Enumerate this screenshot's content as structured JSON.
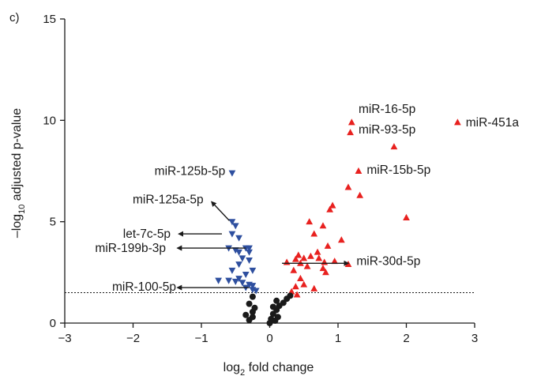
{
  "chart_data": {
    "type": "scatter",
    "panel_label": "c)",
    "title": "",
    "xlabel": {
      "main": "log",
      "sub": "2",
      "rest": " fold change"
    },
    "ylabel": {
      "pre": "–log",
      "sub": "10",
      "rest": " adjusted p-value"
    },
    "xlim": [
      -3,
      3
    ],
    "ylim": [
      0,
      15
    ],
    "xticks": [
      -3,
      -2,
      -1,
      0,
      1,
      2,
      3
    ],
    "yticks": [
      0,
      5,
      10,
      15
    ],
    "x_tick_labels": [
      "−3",
      "−2",
      "−1",
      "0",
      "1",
      "2",
      "3"
    ],
    "y_tick_labels": [
      "0",
      "5",
      "10",
      "15"
    ],
    "grid": false,
    "threshold_line": {
      "y": 1.5,
      "style": "dotted"
    },
    "colors": {
      "down": "#2e4f9f",
      "up": "#e8211f",
      "ns": "#1a1a1a",
      "axis": "#1a1a1a"
    },
    "series": [
      {
        "group": "down",
        "marker": "triangle-down",
        "points": [
          [
            -0.55,
            7.4
          ],
          [
            -0.55,
            5.0
          ],
          [
            -0.5,
            4.8
          ],
          [
            -0.55,
            4.4
          ],
          [
            -0.45,
            4.2
          ],
          [
            -0.6,
            3.7
          ],
          [
            -0.35,
            3.7
          ],
          [
            -0.3,
            3.7
          ],
          [
            -0.5,
            3.6
          ],
          [
            -0.45,
            3.5
          ],
          [
            -0.3,
            3.5
          ],
          [
            -0.4,
            3.2
          ],
          [
            -0.3,
            3.1
          ],
          [
            -0.45,
            2.9
          ],
          [
            -0.25,
            2.6
          ],
          [
            -0.55,
            2.6
          ],
          [
            -0.35,
            2.4
          ],
          [
            -0.45,
            2.2
          ],
          [
            -0.75,
            2.1
          ],
          [
            -0.6,
            2.1
          ],
          [
            -0.5,
            2.05
          ],
          [
            -0.4,
            2.0
          ],
          [
            -0.3,
            1.9
          ],
          [
            -0.25,
            1.85
          ],
          [
            -0.35,
            1.75
          ],
          [
            -0.25,
            1.65
          ],
          [
            -0.2,
            1.6
          ]
        ]
      },
      {
        "group": "up",
        "marker": "triangle-up",
        "points": [
          [
            2.75,
            9.9
          ],
          [
            1.2,
            9.9
          ],
          [
            1.18,
            9.4
          ],
          [
            1.82,
            8.7
          ],
          [
            1.3,
            7.5
          ],
          [
            1.15,
            6.7
          ],
          [
            1.32,
            6.3
          ],
          [
            2.0,
            5.2
          ],
          [
            0.92,
            5.8
          ],
          [
            0.88,
            5.6
          ],
          [
            0.58,
            5.0
          ],
          [
            0.78,
            4.8
          ],
          [
            0.65,
            4.4
          ],
          [
            1.05,
            4.1
          ],
          [
            0.85,
            3.8
          ],
          [
            0.7,
            3.5
          ],
          [
            0.25,
            3.0
          ],
          [
            0.38,
            3.15
          ],
          [
            0.42,
            3.35
          ],
          [
            0.5,
            3.2
          ],
          [
            0.6,
            3.3
          ],
          [
            0.72,
            3.2
          ],
          [
            0.8,
            3.0
          ],
          [
            0.95,
            3.05
          ],
          [
            1.15,
            2.9
          ],
          [
            0.55,
            2.8
          ],
          [
            0.45,
            2.95
          ],
          [
            0.35,
            2.6
          ],
          [
            0.78,
            2.7
          ],
          [
            0.82,
            2.5
          ],
          [
            0.45,
            2.2
          ],
          [
            0.5,
            1.9
          ],
          [
            0.38,
            1.8
          ],
          [
            0.65,
            1.7
          ],
          [
            0.32,
            1.55
          ],
          [
            0.4,
            1.4
          ]
        ]
      },
      {
        "group": "ns",
        "marker": "circle",
        "points": [
          [
            -0.25,
            1.3
          ],
          [
            -0.3,
            0.95
          ],
          [
            -0.22,
            0.75
          ],
          [
            -0.25,
            0.55
          ],
          [
            -0.35,
            0.4
          ],
          [
            -0.3,
            0.15
          ],
          [
            -0.25,
            0.3
          ],
          [
            0.0,
            0.0
          ],
          [
            0.02,
            0.2
          ],
          [
            0.05,
            0.45
          ],
          [
            0.1,
            0.65
          ],
          [
            0.14,
            0.85
          ],
          [
            0.2,
            1.0
          ],
          [
            0.1,
            1.1
          ],
          [
            0.3,
            1.35
          ],
          [
            0.25,
            1.2
          ],
          [
            0.05,
            0.8
          ],
          [
            0.12,
            0.3
          ],
          [
            0.08,
            0.12
          ]
        ]
      }
    ],
    "annotations": [
      {
        "label": "miR-451a",
        "x": 2.87,
        "y": 9.9,
        "anchor": "start"
      },
      {
        "label": "miR-16-5p",
        "x": 1.3,
        "y": 10.55,
        "anchor": "start"
      },
      {
        "label": "miR-93-5p",
        "x": 1.3,
        "y": 9.55,
        "anchor": "start"
      },
      {
        "label": "miR-15b-5p",
        "x": 1.42,
        "y": 7.55,
        "anchor": "start"
      },
      {
        "label": "miR-125b-5p",
        "x": -0.65,
        "y": 7.5,
        "anchor": "end"
      },
      {
        "label": "miR-125a-5p",
        "x": -0.97,
        "y": 6.1,
        "anchor": "end",
        "arrow": {
          "from": [
            -0.59,
            5.05
          ],
          "to": [
            -0.85,
            5.98
          ]
        }
      },
      {
        "label": "let-7c-5p",
        "x": -1.45,
        "y": 4.4,
        "anchor": "end",
        "arrow": {
          "from": [
            -0.7,
            4.4
          ],
          "to": [
            -1.33,
            4.4
          ]
        }
      },
      {
        "label": "miR-199b-3p",
        "x": -1.52,
        "y": 3.7,
        "anchor": "end",
        "arrow": {
          "from": [
            -0.35,
            3.7
          ],
          "to": [
            -1.35,
            3.7
          ]
        }
      },
      {
        "label": "miR-100-5p",
        "x": -1.37,
        "y": 1.8,
        "anchor": "end",
        "arrow": {
          "from": [
            -0.3,
            1.75
          ],
          "to": [
            -1.35,
            1.75
          ]
        }
      },
      {
        "label": "miR-30d-5p",
        "x": 1.27,
        "y": 3.05,
        "anchor": "start",
        "arrow": {
          "from": [
            0.18,
            2.95
          ],
          "to": [
            1.15,
            2.95
          ]
        }
      }
    ]
  }
}
